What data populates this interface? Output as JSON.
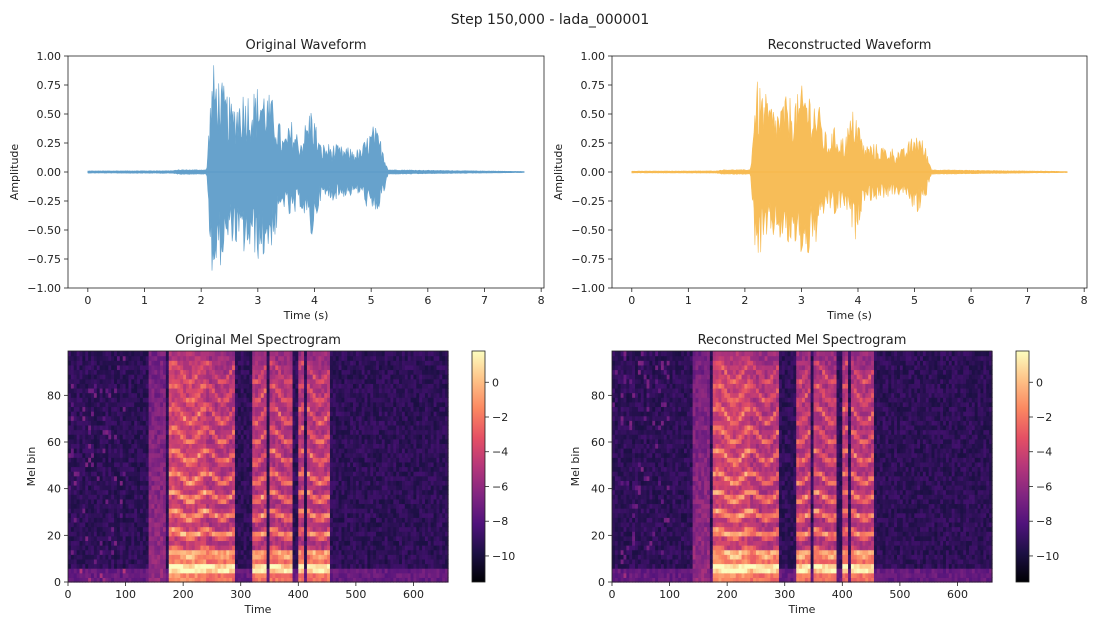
{
  "figure": {
    "suptitle": "Step 150,000 - lada_000001"
  },
  "colors": {
    "original_wave": "#5b9bc8",
    "reconstructed_wave": "#f7b84a",
    "axes": "#222222",
    "colormap": [
      "#000004",
      "#1c1044",
      "#4f127b",
      "#812581",
      "#b5367a",
      "#e55064",
      "#fb8761",
      "#fec287",
      "#fcfdbf"
    ]
  },
  "chart_data": [
    {
      "type": "line",
      "title": "Original Waveform",
      "xlabel": "Time (s)",
      "ylabel": "Amplitude",
      "xlim": [
        -0.35,
        8.05
      ],
      "ylim": [
        -1.0,
        1.0
      ],
      "xticks": [
        "0",
        "1",
        "2",
        "3",
        "4",
        "5",
        "6",
        "7",
        "8"
      ],
      "yticks": [
        "1.00",
        "0.75",
        "0.50",
        "0.25",
        "0.00",
        "−0.25",
        "−0.50",
        "−0.75",
        "−1.00"
      ],
      "duration_s": 7.7,
      "envelope": [
        {
          "t": 0.0,
          "a": 0.01
        },
        {
          "t": 1.5,
          "a": 0.012
        },
        {
          "t": 1.6,
          "a": 0.02
        },
        {
          "t": 2.1,
          "a": 0.02
        },
        {
          "t": 2.14,
          "a": 0.45
        },
        {
          "t": 2.2,
          "a": 0.96
        },
        {
          "t": 2.4,
          "a": 0.75
        },
        {
          "t": 2.55,
          "a": 0.6
        },
        {
          "t": 2.7,
          "a": 0.72
        },
        {
          "t": 2.95,
          "a": 0.72
        },
        {
          "t": 3.05,
          "a": 0.8
        },
        {
          "t": 3.3,
          "a": 0.6
        },
        {
          "t": 3.45,
          "a": 0.3
        },
        {
          "t": 3.6,
          "a": 0.45
        },
        {
          "t": 3.75,
          "a": 0.3
        },
        {
          "t": 3.95,
          "a": 0.6
        },
        {
          "t": 4.1,
          "a": 0.25
        },
        {
          "t": 4.3,
          "a": 0.25
        },
        {
          "t": 4.5,
          "a": 0.22
        },
        {
          "t": 4.8,
          "a": 0.2
        },
        {
          "t": 5.05,
          "a": 0.42
        },
        {
          "t": 5.2,
          "a": 0.25
        },
        {
          "t": 5.3,
          "a": 0.02
        },
        {
          "t": 7.7,
          "a": 0.005
        }
      ]
    },
    {
      "type": "line",
      "title": "Reconstructed Waveform",
      "xlabel": "Time (s)",
      "ylabel": "Amplitude",
      "xlim": [
        -0.35,
        8.05
      ],
      "ylim": [
        -1.0,
        1.0
      ],
      "xticks": [
        "0",
        "1",
        "2",
        "3",
        "4",
        "5",
        "6",
        "7",
        "8"
      ],
      "yticks": [
        "1.00",
        "0.75",
        "0.50",
        "0.25",
        "0.00",
        "−0.25",
        "−0.50",
        "−0.75",
        "−1.00"
      ],
      "duration_s": 7.7,
      "envelope": [
        {
          "t": 0.0,
          "a": 0.008
        },
        {
          "t": 1.5,
          "a": 0.01
        },
        {
          "t": 1.6,
          "a": 0.02
        },
        {
          "t": 2.1,
          "a": 0.02
        },
        {
          "t": 2.14,
          "a": 0.4
        },
        {
          "t": 2.2,
          "a": 0.8
        },
        {
          "t": 2.4,
          "a": 0.65
        },
        {
          "t": 2.55,
          "a": 0.55
        },
        {
          "t": 2.7,
          "a": 0.65
        },
        {
          "t": 2.95,
          "a": 0.68
        },
        {
          "t": 3.05,
          "a": 0.8
        },
        {
          "t": 3.3,
          "a": 0.6
        },
        {
          "t": 3.45,
          "a": 0.3
        },
        {
          "t": 3.6,
          "a": 0.4
        },
        {
          "t": 3.75,
          "a": 0.3
        },
        {
          "t": 3.95,
          "a": 0.6
        },
        {
          "t": 4.1,
          "a": 0.25
        },
        {
          "t": 4.3,
          "a": 0.25
        },
        {
          "t": 4.5,
          "a": 0.22
        },
        {
          "t": 4.8,
          "a": 0.2
        },
        {
          "t": 5.05,
          "a": 0.37
        },
        {
          "t": 5.2,
          "a": 0.22
        },
        {
          "t": 5.3,
          "a": 0.02
        },
        {
          "t": 7.7,
          "a": 0.005
        }
      ]
    },
    {
      "type": "heatmap",
      "title": "Original Mel Spectrogram",
      "xlabel": "Time",
      "ylabel": "Mel bin",
      "xlim": [
        0,
        660
      ],
      "ylim": [
        0,
        99
      ],
      "xticks": [
        "0",
        "100",
        "200",
        "300",
        "400",
        "500",
        "600"
      ],
      "yticks": [
        "0",
        "20",
        "40",
        "60",
        "80"
      ],
      "colorbar": {
        "ticks": [
          "0",
          "−2",
          "−4",
          "−6",
          "−8",
          "−10"
        ],
        "range": [
          -11.5,
          1.8
        ]
      },
      "voiced_segments": [
        [
          175,
          290
        ],
        [
          320,
          345
        ],
        [
          352,
          392
        ],
        [
          398,
          412
        ],
        [
          416,
          455
        ]
      ],
      "breath_segment": [
        140,
        168
      ],
      "bright_segment": [
        175,
        240
      ]
    },
    {
      "type": "heatmap",
      "title": "Reconstructed Mel Spectrogram",
      "xlabel": "Time",
      "ylabel": "Mel bin",
      "xlim": [
        0,
        660
      ],
      "ylim": [
        0,
        99
      ],
      "xticks": [
        "0",
        "100",
        "200",
        "300",
        "400",
        "500",
        "600"
      ],
      "yticks": [
        "0",
        "20",
        "40",
        "60",
        "80"
      ],
      "colorbar": {
        "ticks": [
          "0",
          "−2",
          "−4",
          "−6",
          "−8",
          "−10"
        ],
        "range": [
          -11.5,
          1.8
        ]
      },
      "voiced_segments": [
        [
          175,
          290
        ],
        [
          320,
          345
        ],
        [
          352,
          392
        ],
        [
          398,
          412
        ],
        [
          416,
          455
        ]
      ],
      "breath_segment": [
        140,
        168
      ],
      "bright_segment": [
        175,
        240
      ]
    }
  ]
}
